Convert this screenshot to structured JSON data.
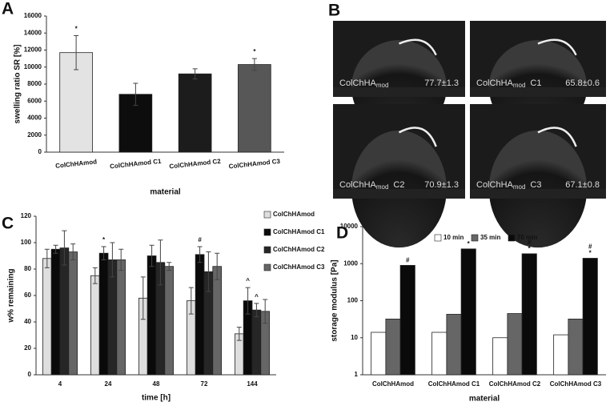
{
  "chart_data": [
    {
      "type": "bar",
      "panel": "A",
      "xlabel": "material",
      "ylabel": "swelling ratio SR [%]",
      "categories": [
        "ColChHAmod",
        "ColChHAmod C1",
        "ColChHAmod C2",
        "ColChHAmod C3"
      ],
      "values": [
        11700,
        6800,
        9200,
        10300
      ],
      "errors": [
        2000,
        1300,
        600,
        700
      ],
      "colors": [
        "#e3e3e3",
        "#0d0d0d",
        "#1c1c1c",
        "#575757"
      ],
      "annotations": [
        "*",
        null,
        null,
        "*"
      ],
      "ylim": [
        0,
        16000
      ],
      "yticks": [
        0,
        2000,
        4000,
        6000,
        8000,
        10000,
        12000,
        14000,
        16000
      ]
    },
    {
      "type": "bar",
      "panel": "C",
      "xlabel": "time [h]",
      "ylabel": "w% remaining",
      "legend": "right",
      "categories": [
        "4",
        "24",
        "48",
        "72",
        "144"
      ],
      "series": [
        {
          "name": "ColChHAmod",
          "color": "#dedede",
          "values": [
            88,
            75,
            58,
            56,
            31
          ],
          "errors": [
            7,
            6,
            16,
            10,
            5
          ]
        },
        {
          "name": "ColChHAmod C1",
          "color": "#0a0a0a",
          "values": [
            95,
            92,
            90,
            91,
            56
          ],
          "errors": [
            3,
            5,
            8,
            6,
            10
          ],
          "annotations": [
            null,
            "*",
            null,
            "#",
            "^"
          ]
        },
        {
          "name": "ColChHAmod C2",
          "color": "#262626",
          "values": [
            96,
            87,
            85,
            78,
            49
          ],
          "errors": [
            13,
            13,
            17,
            15,
            5
          ],
          "annotations": [
            null,
            null,
            null,
            null,
            "^"
          ]
        },
        {
          "name": "ColChHAmod C3",
          "color": "#666666",
          "values": [
            93,
            87,
            82,
            82,
            48
          ],
          "errors": [
            6,
            8,
            3,
            10,
            9
          ]
        }
      ],
      "ylim": [
        0,
        120
      ],
      "yticks": [
        0,
        20,
        40,
        60,
        80,
        100,
        120
      ]
    },
    {
      "type": "bar",
      "panel": "D",
      "xlabel": "material",
      "ylabel": "storage modulus [Pa]",
      "legend": "top",
      "log_scale": true,
      "categories": [
        "ColChHAmod",
        "ColChHAmod C1",
        "ColChHAmod C2",
        "ColChHAmod C3"
      ],
      "series": [
        {
          "name": "10 min",
          "color": "#ffffff",
          "values": [
            14,
            14,
            10,
            12
          ]
        },
        {
          "name": "35 min",
          "color": "#666666",
          "values": [
            32,
            43,
            45,
            32
          ]
        },
        {
          "name": "70 min",
          "color": "#0a0a0a",
          "values": [
            900,
            2500,
            1850,
            1400
          ],
          "annotations": [
            [
              "#"
            ],
            [
              "*"
            ],
            [
              "#",
              "*"
            ],
            [
              "#",
              "*"
            ]
          ]
        }
      ],
      "ylim": [
        1,
        10000
      ],
      "yticks": [
        1,
        10,
        100,
        1000,
        10000
      ]
    }
  ],
  "contact_angle": {
    "panel": "B",
    "images": [
      {
        "name": "ColChHA",
        "sub": "mod",
        "value": "77.7±1.3"
      },
      {
        "name": "ColChHA",
        "sub": "mod",
        "suffix": "C1",
        "value": "65.8±0.6"
      },
      {
        "name": "ColChHA",
        "sub": "mod",
        "suffix": "C2",
        "value": "70.9±1.3"
      },
      {
        "name": "ColChHA",
        "sub": "mod",
        "suffix": "C3",
        "value": "67.1±0.8"
      }
    ]
  }
}
